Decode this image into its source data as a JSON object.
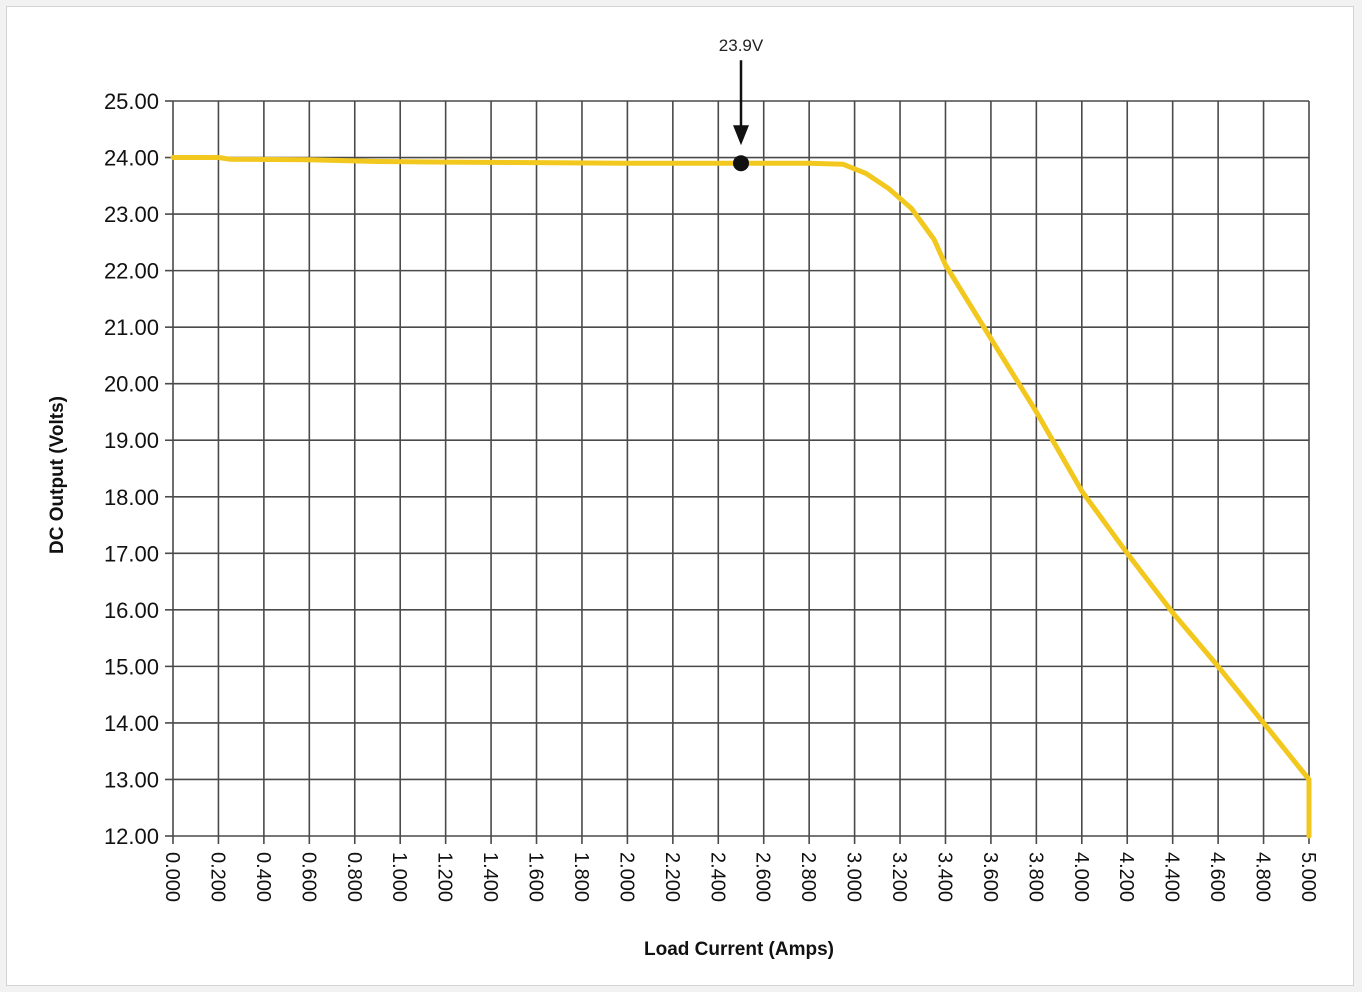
{
  "chart_data": {
    "type": "line",
    "title": "",
    "xlabel": "Load Current (Amps)",
    "ylabel": "DC Output (Volts)",
    "xlim": [
      0,
      5
    ],
    "ylim": [
      12,
      25
    ],
    "grid": true,
    "legend": "none",
    "x_ticks": [
      "0.000",
      "0.200",
      "0.400",
      "0.600",
      "0.800",
      "1.000",
      "1.200",
      "1.400",
      "1.600",
      "1.800",
      "2.000",
      "2.200",
      "2.400",
      "2.600",
      "2.800",
      "3.000",
      "3.200",
      "3.400",
      "3.600",
      "3.800",
      "4.000",
      "4.200",
      "4.400",
      "4.600",
      "4.800",
      "5.000"
    ],
    "y_ticks": [
      "12.00",
      "13.00",
      "14.00",
      "15.00",
      "16.00",
      "17.00",
      "18.00",
      "19.00",
      "20.00",
      "21.00",
      "22.00",
      "23.00",
      "24.00",
      "25.00"
    ],
    "series": [
      {
        "color": "#f2c81e",
        "x": [
          0.0,
          0.2,
          0.25,
          0.6,
          0.9,
          1.2,
          1.6,
          2.0,
          2.5,
          2.8,
          2.95,
          3.05,
          3.15,
          3.25,
          3.35,
          3.4,
          3.5,
          3.6,
          3.8,
          4.0,
          4.2,
          4.4,
          4.6,
          4.8,
          5.0,
          5.0
        ],
        "y": [
          24.0,
          24.0,
          23.97,
          23.96,
          23.93,
          23.92,
          23.91,
          23.9,
          23.9,
          23.9,
          23.88,
          23.72,
          23.45,
          23.1,
          22.55,
          22.1,
          21.45,
          20.8,
          19.5,
          18.1,
          17.0,
          15.95,
          15.0,
          14.0,
          13.0,
          12.0
        ]
      }
    ],
    "annotations": [
      {
        "text": "23.9V",
        "x": 2.5,
        "y": 23.9
      }
    ]
  }
}
